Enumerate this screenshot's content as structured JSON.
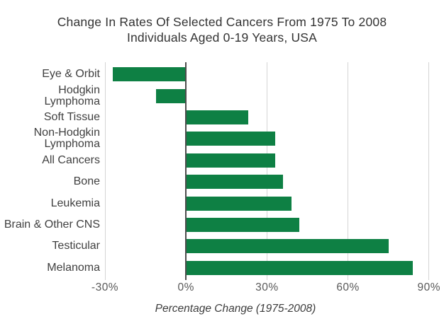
{
  "header": {
    "title_line1": "Change In Rates Of Selected Cancers From 1975 To 2008",
    "title_line2": "Individuals Aged 0-19 Years, USA"
  },
  "chart_data": {
    "type": "bar",
    "orientation": "horizontal",
    "title": "Change In Rates Of Selected Cancers From 1975 To 2008",
    "subtitle": "Individuals Aged 0-19 Years, USA",
    "categories": [
      "Eye & Orbit",
      "Hodgkin Lymphoma",
      "Soft Tissue",
      "Non-Hodgkin\nLymphoma",
      "All Cancers",
      "Bone",
      "Leukemia",
      "Brain & Other CNS",
      "Testicular",
      "Melanoma"
    ],
    "values": [
      -27,
      -11,
      23,
      33,
      33,
      36,
      39,
      42,
      75,
      84
    ],
    "xlabel": "Percentage Change (1975-2008)",
    "x_ticks": [
      -30,
      0,
      30,
      60,
      90
    ],
    "x_tick_labels": [
      "-30%",
      "0%",
      "30%",
      "60%",
      "90%"
    ],
    "xlim": [
      -30,
      94
    ],
    "grid": true,
    "legend": "none",
    "colors": {
      "bar": "#0e8044",
      "gridline": "#d4d4d4",
      "zero_line": "#4d4d4d",
      "tick_label": "#595959",
      "category_label": "#404040",
      "title": "#333333"
    }
  }
}
